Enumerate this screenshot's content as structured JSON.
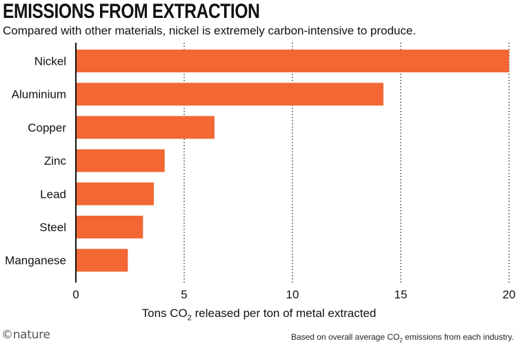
{
  "logo_text": "©nature",
  "chart_data": {
    "type": "bar",
    "orientation": "horizontal",
    "title": "EMISSIONS FROM EXTRACTION",
    "subtitle": "Compared with other materials, nickel is extremely carbon-intensive to produce.",
    "categories": [
      "Nickel",
      "Aluminium",
      "Copper",
      "Zinc",
      "Lead",
      "Steel",
      "Manganese"
    ],
    "values": [
      20,
      14.2,
      6.4,
      4.1,
      3.6,
      3.1,
      2.4
    ],
    "xlim": [
      0,
      20
    ],
    "xticks": [
      0,
      5,
      10,
      15,
      20
    ],
    "xlabel_parts": {
      "before": "Tons CO",
      "sub": "2",
      "after": " released per ton of metal extracted"
    },
    "ylabel": "",
    "grid": "vertical dotted",
    "bar_color": "#f26734",
    "source_parts": {
      "before": "Based on overall average CO",
      "sub": "2",
      "after": " emissions from each industry."
    }
  }
}
